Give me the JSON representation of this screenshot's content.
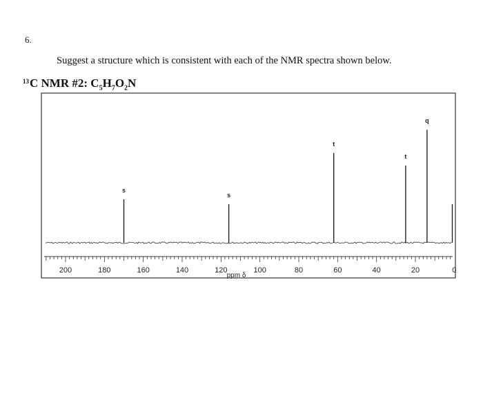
{
  "question": {
    "number": "6.",
    "prompt": "Suggest a structure which is consistent with each of the NMR spectra shown below."
  },
  "spectrum_title": {
    "nmr": "C NMR #2:",
    "isotope": "13",
    "formula_parts": [
      "C",
      "5",
      "H",
      "7",
      "O",
      "2",
      "N"
    ]
  },
  "chart_data": {
    "type": "line",
    "title": "13C NMR #2: C5H7O2N",
    "xlabel": "ppm δ",
    "xlim": [
      210,
      0
    ],
    "x_reversed": true,
    "tick_labels": [
      "200",
      "180",
      "160",
      "140",
      "120",
      "100",
      "80",
      "60",
      "40",
      "20",
      "0"
    ],
    "tick_values": [
      200,
      180,
      160,
      140,
      120,
      100,
      80,
      60,
      40,
      20,
      0
    ],
    "peaks": [
      {
        "ppm": 170,
        "height": 0.45,
        "label": "s"
      },
      {
        "ppm": 116,
        "height": 0.4,
        "label": "s"
      },
      {
        "ppm": 62,
        "height": 0.93,
        "label": "t"
      },
      {
        "ppm": 25,
        "height": 0.8,
        "label": "t"
      },
      {
        "ppm": 14,
        "height": 1.17,
        "label": "q"
      },
      {
        "ppm": 1,
        "height": 0.4,
        "label": ""
      }
    ],
    "grid": false
  }
}
